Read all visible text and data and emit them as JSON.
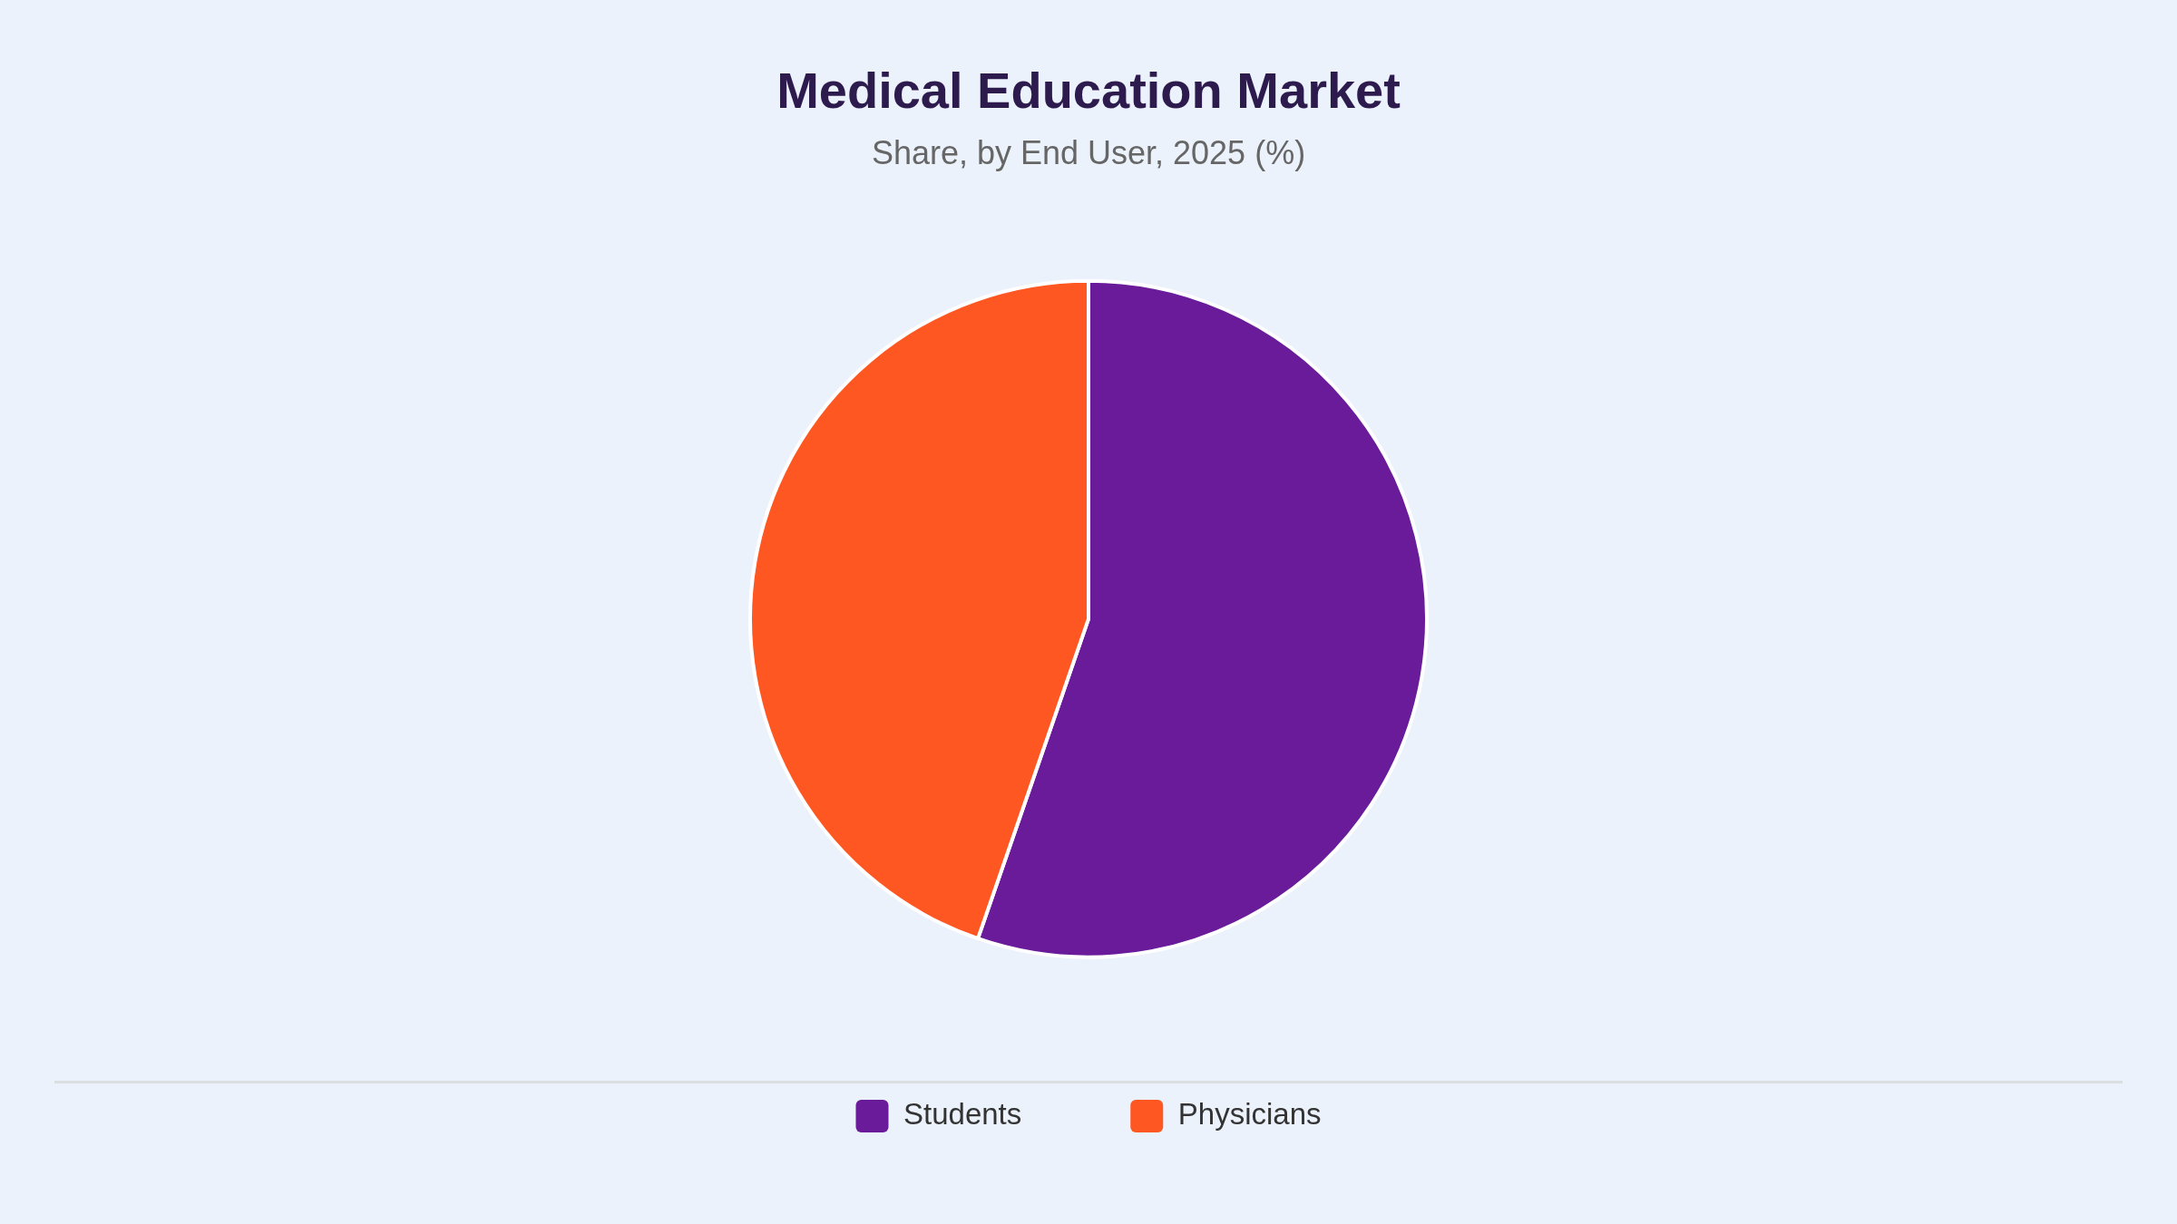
{
  "chart_data": {
    "type": "pie",
    "title": "Medical Education Market",
    "subtitle": "Share, by End User, 2025 (%)",
    "categories": [
      "Students",
      "Physicians"
    ],
    "values": [
      55.3,
      44.7
    ],
    "colors": [
      "#6a1b9a",
      "#ff5722"
    ],
    "legend": "bottom"
  }
}
